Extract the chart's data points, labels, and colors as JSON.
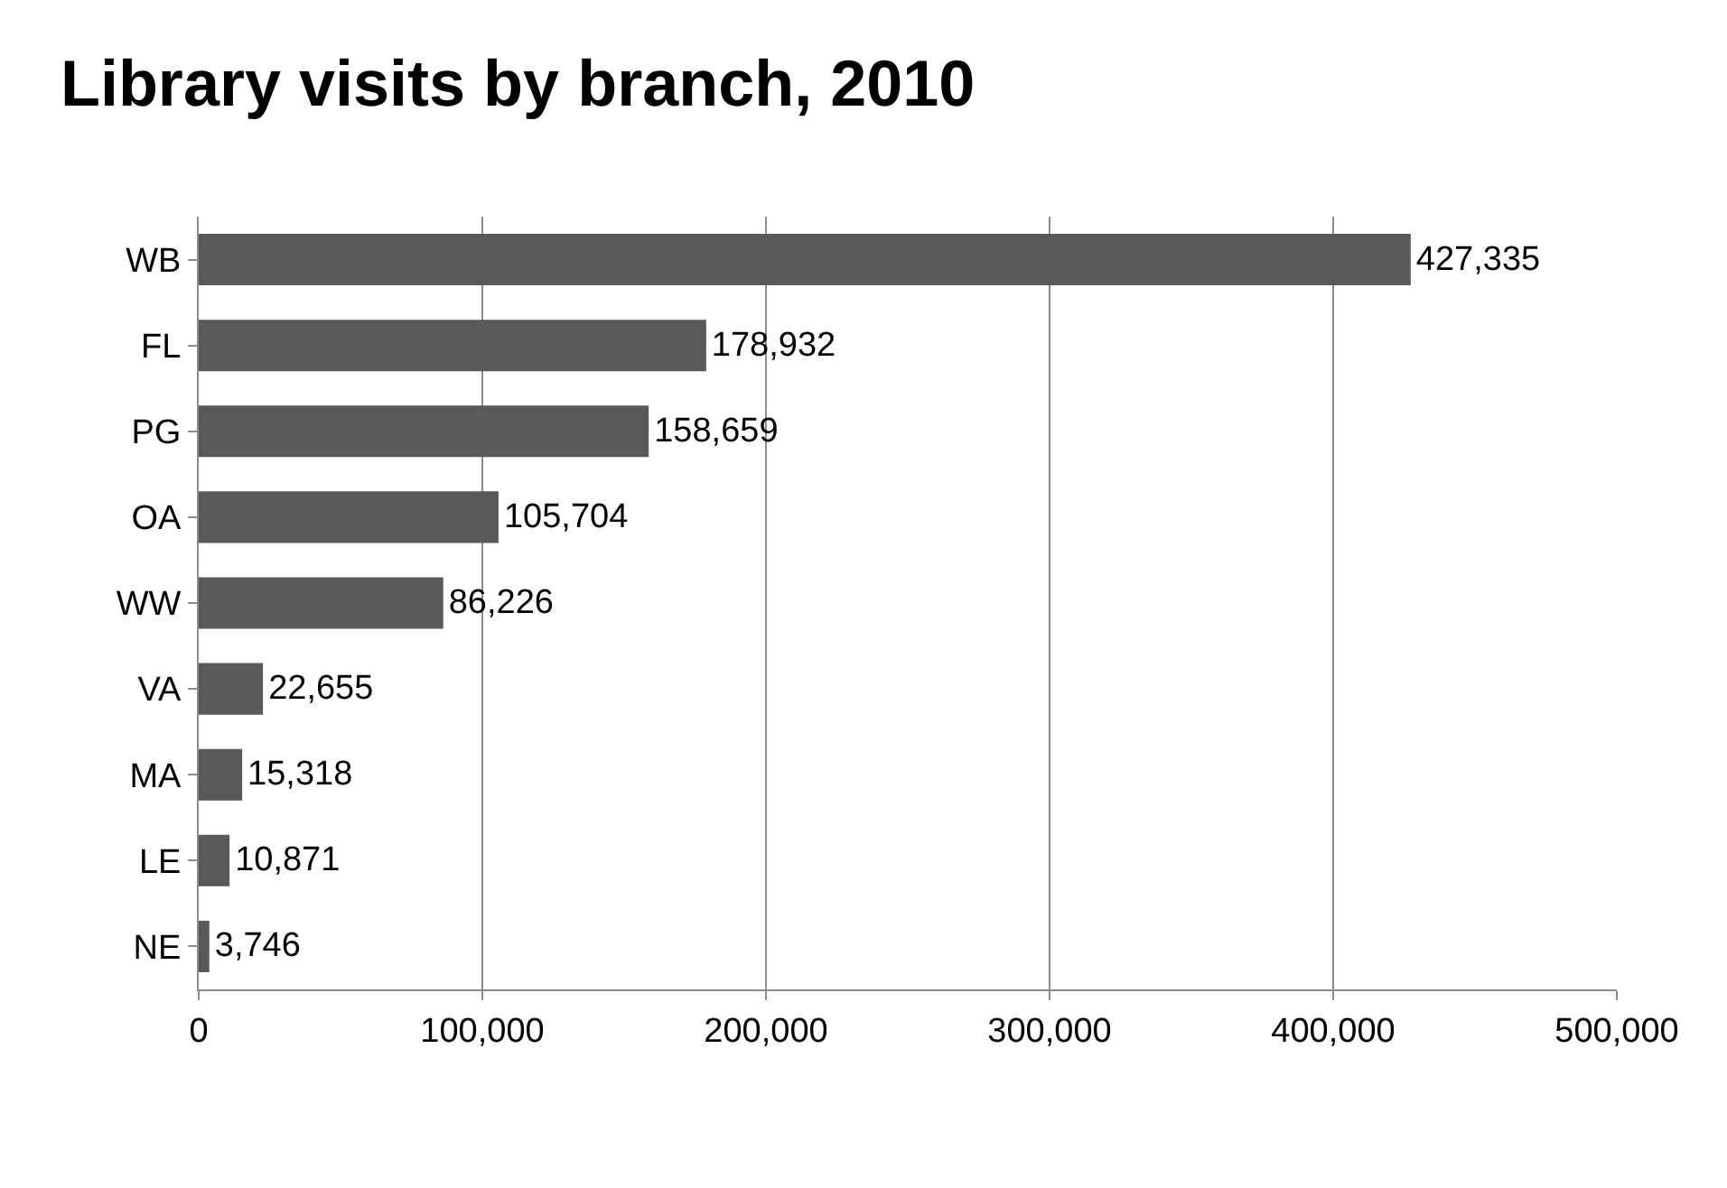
{
  "chart_data": {
    "type": "bar",
    "orientation": "horizontal",
    "title": "Library visits by branch, 2010",
    "categories": [
      "WB",
      "FL",
      "PG",
      "OA",
      "WW",
      "VA",
      "MA",
      "LE",
      "NE"
    ],
    "values": [
      427335,
      178932,
      158659,
      105704,
      86226,
      22655,
      15318,
      10871,
      3746
    ],
    "color": "#595959",
    "xlim": [
      0,
      500000
    ],
    "xticks": [
      0,
      {
        "value": 100000,
        "label": "100,000"
      },
      {
        "value": 200000,
        "label": "200,000"
      },
      {
        "value": 300000,
        "label": "300,000"
      },
      {
        "value": 400000,
        "label": "400,000"
      },
      {
        "value": 500000,
        "label": "500,000"
      }
    ],
    "value_labels": [
      "427,335",
      "178,932",
      "158,659",
      "105,704",
      "86,226",
      "22,655",
      "15,318",
      "10,871",
      "3,746"
    ],
    "grid": "x",
    "legend": false
  }
}
